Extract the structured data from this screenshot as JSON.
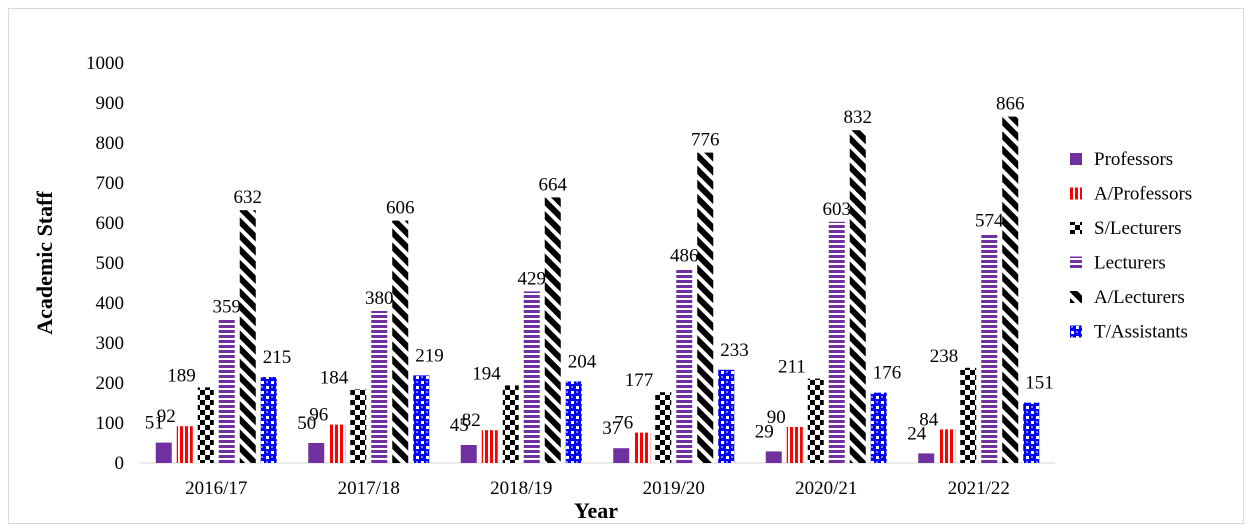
{
  "chart_data": {
    "type": "bar",
    "title": "",
    "xlabel": "Year",
    "ylabel": "Academic Staff",
    "ylim": [
      0,
      1000
    ],
    "ytick_step": 100,
    "grid": false,
    "legend_position": "right",
    "categories": [
      "2016/17",
      "2017/18",
      "2018/19",
      "2019/20",
      "2020/21",
      "2021/22"
    ],
    "series": [
      {
        "name": "Professors",
        "values": [
          51,
          50,
          45,
          37,
          29,
          24
        ],
        "color": "#7030a0",
        "pattern": "solid"
      },
      {
        "name": "A/Professors",
        "values": [
          92,
          96,
          82,
          76,
          90,
          84
        ],
        "color": "#ff0000",
        "pattern": "vertical-stripes"
      },
      {
        "name": "S/Lecturers",
        "values": [
          189,
          184,
          194,
          177,
          211,
          238
        ],
        "color": "#000000",
        "pattern": "checkerboard"
      },
      {
        "name": "Lecturers",
        "values": [
          359,
          380,
          429,
          486,
          603,
          574
        ],
        "color": "#7030a0",
        "pattern": "horizontal-stripes"
      },
      {
        "name": "A/Lecturers",
        "values": [
          632,
          606,
          664,
          776,
          832,
          866
        ],
        "color": "#000000",
        "pattern": "diagonal-stripes"
      },
      {
        "name": "T/Assistants",
        "values": [
          215,
          219,
          204,
          233,
          176,
          151
        ],
        "color": "#0000ff",
        "pattern": "weave"
      }
    ]
  }
}
